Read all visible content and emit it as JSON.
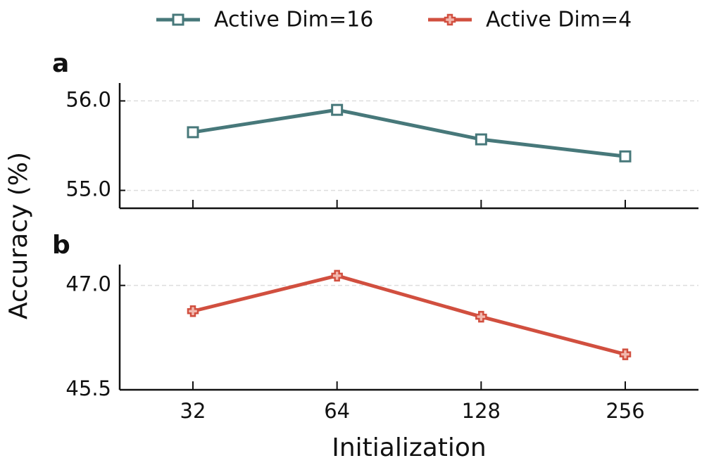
{
  "chart_data": [
    {
      "type": "line",
      "panel": "a",
      "ylabel": "Accuracy (%)",
      "series": [
        {
          "name": "Active Dim=16",
          "color": "#47787a",
          "marker": "square",
          "values": [
            55.65,
            55.9,
            55.57,
            55.38
          ]
        }
      ],
      "ylim": [
        54.8,
        56.2
      ],
      "yticks": [
        {
          "value": 55.0,
          "label": "55.0"
        },
        {
          "value": 56.0,
          "label": "56.0"
        }
      ],
      "grid": true
    },
    {
      "type": "line",
      "panel": "b",
      "xlabel": "Initialization",
      "categories": [
        "32",
        "64",
        "128",
        "256"
      ],
      "series": [
        {
          "name": "Active Dim=4",
          "color": "#d14f3f",
          "marker": "plus",
          "values": [
            46.63,
            47.14,
            46.55,
            46.01
          ]
        }
      ],
      "ylim": [
        45.5,
        47.3
      ],
      "yticks": [
        45.5,
        {
          "value": 47.0,
          "label": "47.0"
        }
      ],
      "grid": true
    }
  ]
}
